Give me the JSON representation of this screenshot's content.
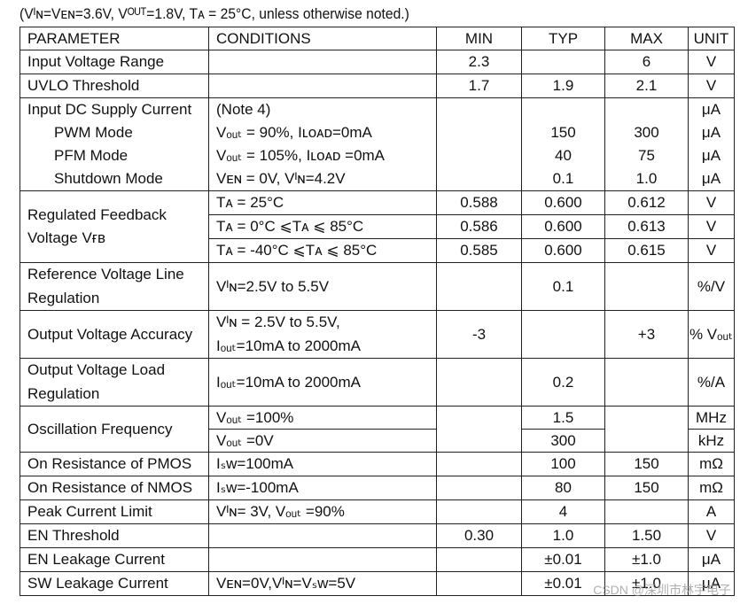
{
  "caption": "(Vᴵɴ=Vᴇɴ=3.6V, Vᴼᵁᵀ=1.8V, Tᴀ = 25°C, unless otherwise noted.)",
  "header": {
    "parameter": "PARAMETER",
    "conditions": "CONDITIONS",
    "min": "MIN",
    "typ": "TYP",
    "max": "MAX",
    "unit": "UNIT"
  },
  "rows": {
    "input_voltage_range": {
      "parameter": "Input Voltage Range",
      "conditions": "",
      "min": "2.3",
      "typ": "",
      "max": "6",
      "unit": "V"
    },
    "uvlo": {
      "parameter": "UVLO Threshold",
      "conditions": "",
      "min": "1.7",
      "typ": "1.9",
      "max": "2.1",
      "unit": "V"
    },
    "supply_current": {
      "parameter": "Input DC Supply Current",
      "note": "(Note 4)",
      "unit_header": "μA",
      "pwm": {
        "label": "PWM Mode",
        "conditions": "Vₒᵤₜ = 90%, Iʟᴏᴀᴅ=0mA",
        "typ": "150",
        "max": "300",
        "unit": "μA"
      },
      "pfm": {
        "label": "PFM Mode",
        "conditions": "Vₒᵤₜ = 105%, Iʟᴏᴀᴅ =0mA",
        "typ": "40",
        "max": "75",
        "unit": "μA"
      },
      "shutdown": {
        "label": "Shutdown Mode",
        "conditions": "Vᴇɴ = 0V, Vᴵɴ=4.2V",
        "typ": "0.1",
        "max": "1.0",
        "unit": "μA"
      }
    },
    "feedback": {
      "parameter_line1": "Regulated Feedback",
      "parameter_line2": "Voltage Vғʙ",
      "r1": {
        "conditions": "Tᴀ = 25°C",
        "min": "0.588",
        "typ": "0.600",
        "max": "0.612",
        "unit": "V"
      },
      "r2": {
        "conditions": "Tᴀ = 0°C  ⩽Tᴀ  ⩽  85°C",
        "min": "0.586",
        "typ": "0.600",
        "max": "0.613",
        "unit": "V"
      },
      "r3": {
        "conditions": "Tᴀ = -40°C  ⩽Tᴀ  ⩽  85°C",
        "min": "0.585",
        "typ": "0.600",
        "max": "0.615",
        "unit": "V"
      }
    },
    "line_regulation": {
      "parameter_line1": "Reference Voltage Line",
      "parameter_line2": "Regulation",
      "conditions": "Vᴵɴ=2.5V to 5.5V",
      "min": "",
      "typ": "0.1",
      "max": "",
      "unit": "%/V"
    },
    "accuracy": {
      "parameter": "Output Voltage Accuracy",
      "conditions_line1": "Vᴵɴ = 2.5V to 5.5V,",
      "conditions_line2": "Iₒᵤₜ=10mA to 2000mA",
      "min": "-3",
      "typ": "",
      "max": "+3",
      "unit": "% Vₒᵤₜ"
    },
    "load_regulation": {
      "parameter_line1": "Output Voltage Load",
      "parameter_line2": "Regulation",
      "conditions": "Iₒᵤₜ=10mA to 2000mA",
      "min": "",
      "typ": "0.2",
      "max": "",
      "unit": "%/A"
    },
    "oscillation": {
      "parameter": "Oscillation Frequency",
      "r1": {
        "conditions": "Vₒᵤₜ =100%",
        "typ": "1.5",
        "unit": "MHz"
      },
      "r2": {
        "conditions": "Vₒᵤₜ =0V",
        "typ": "300",
        "unit": "kHz"
      }
    },
    "pmos": {
      "parameter": "On Resistance of PMOS",
      "conditions": "Iₛᴡ=100mA",
      "min": "",
      "typ": "100",
      "max": "150",
      "unit": "mΩ"
    },
    "nmos": {
      "parameter": "On Resistance of NMOS",
      "conditions": "Iₛᴡ=-100mA",
      "min": "",
      "typ": "80",
      "max": "150",
      "unit": "mΩ"
    },
    "peak_current": {
      "parameter": "Peak Current Limit",
      "conditions": "Vᴵɴ= 3V, Vₒᵤₜ =90%",
      "min": "",
      "typ": "4",
      "max": "",
      "unit": "A"
    },
    "en_threshold": {
      "parameter": "EN Threshold",
      "conditions": "",
      "min": "0.30",
      "typ": "1.0",
      "max": "1.50",
      "unit": "V"
    },
    "en_leakage": {
      "parameter": "EN Leakage Current",
      "conditions": "",
      "min": "",
      "typ": "±0.01",
      "max": "±1.0",
      "unit": "μA"
    },
    "sw_leakage": {
      "parameter": "SW Leakage Current",
      "conditions": "Vᴇɴ=0V,Vᴵɴ=Vₛᴡ=5V",
      "min": "",
      "typ": "±0.01",
      "max": "±1.0",
      "unit": "μA"
    }
  },
  "watermark": "CSDN @深圳市林宇电子"
}
